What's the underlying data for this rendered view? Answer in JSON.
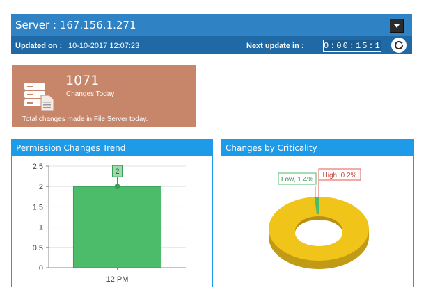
{
  "header": {
    "server_label": "Server : 167.156.1.271",
    "updated_label": "Updated on :",
    "updated_value": "10-10-2017 12:07:23",
    "next_update_label": "Next update in :",
    "countdown": "0:00:15:1"
  },
  "summary_card": {
    "count": "1071",
    "label": "Changes Today",
    "description": "Total changes made in File Server today."
  },
  "permission_panel": {
    "title": "Permission Changes Trend"
  },
  "criticality_panel": {
    "title": "Changes by Criticality"
  },
  "colors": {
    "header_blue": "#2f82c4",
    "panel_blue": "#1e9be8",
    "card_brown": "#c7866a",
    "bar_green": "#4cbb6a",
    "donut_yellow": "#f0c419",
    "low_green": "#4cbb6a",
    "high_red": "#e05a4c"
  },
  "chart_data": [
    {
      "type": "bar",
      "title": "Permission Changes Trend",
      "categories": [
        "12 PM"
      ],
      "values": [
        2
      ],
      "data_labels": [
        "2"
      ],
      "ylim": [
        0,
        2.5
      ],
      "yticks": [
        "0",
        "0.5",
        "1",
        "1.5",
        "2",
        "2.5"
      ],
      "grid": true,
      "xlabel": "",
      "ylabel": ""
    },
    {
      "type": "pie",
      "title": "Changes by Criticality",
      "style": "donut-3d",
      "slices": [
        {
          "label": "Low, 1.4%",
          "value": 1.4
        },
        {
          "label": "High, 0.2%",
          "value": 0.2
        },
        {
          "label": "",
          "value": 98.4
        }
      ]
    }
  ]
}
